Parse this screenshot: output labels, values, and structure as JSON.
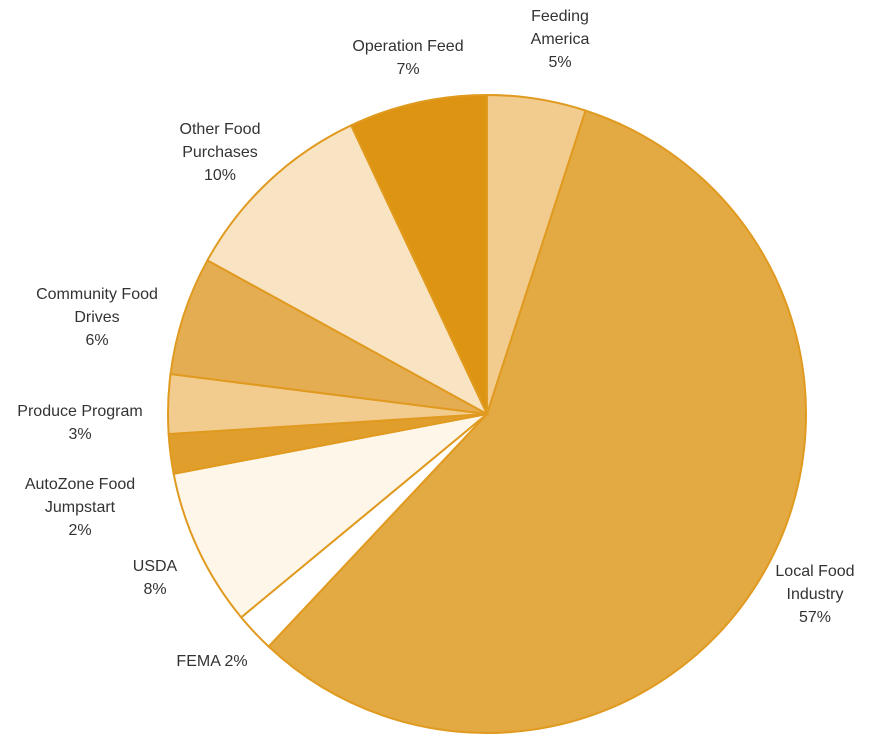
{
  "chart_data": {
    "type": "pie",
    "categories": [
      "Feeding America",
      "Local Food Industry",
      "FEMA",
      "USDA",
      "AutoZone Food Jumpstart",
      "Produce Program",
      "Community Food Drives",
      "Other Food Purchases",
      "Operation Feed"
    ],
    "values": [
      5,
      57,
      2,
      8,
      2,
      3,
      6,
      10,
      7
    ],
    "value_labels": [
      "5%",
      "57%",
      "2%",
      "8%",
      "2%",
      "3%",
      "6%",
      "10%",
      "7%"
    ],
    "colors": [
      "#f2cc8f",
      "#e3a942",
      "#ffffff",
      "#fef6e8",
      "#e09e2c",
      "#f2cc8f",
      "#e5ad52",
      "#f8e4c2",
      "#dd9413"
    ]
  }
}
